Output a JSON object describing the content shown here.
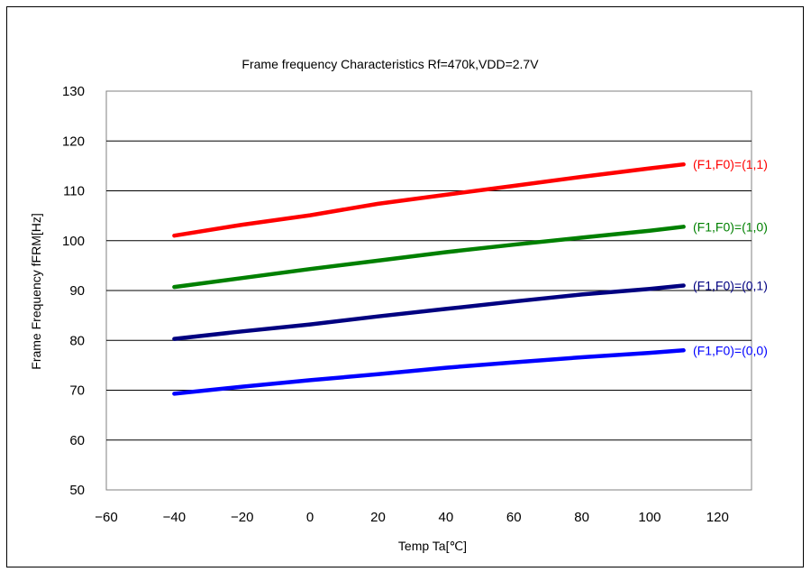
{
  "chart_data": {
    "type": "line",
    "title": "Frame frequency Characteristics  Rf=470k,VDD=2.7V",
    "xlabel": "Temp  Ta[℃]",
    "ylabel": "Frame Frequency fFRM[Hz]",
    "xlim": [
      -60,
      130
    ],
    "ylim": [
      50,
      130
    ],
    "xticks": [
      -60,
      -40,
      -20,
      0,
      20,
      40,
      60,
      80,
      100,
      120
    ],
    "yticks": [
      50,
      60,
      70,
      80,
      90,
      100,
      110,
      120,
      130
    ],
    "xtick_labels": [
      "−60",
      "−40",
      "−20",
      "0",
      "20",
      "40",
      "60",
      "80",
      "100",
      "120"
    ],
    "ytick_labels": [
      "50",
      "60",
      "70",
      "80",
      "90",
      "100",
      "110",
      "120",
      "130"
    ],
    "grid": "horizontal",
    "legend": "inline-right",
    "series": [
      {
        "name": "(F1,F0)=(1,1)",
        "color": "#ff0000",
        "x": [
          -40,
          -20,
          0,
          20,
          40,
          60,
          80,
          100,
          110
        ],
        "y": [
          101,
          103.2,
          105.1,
          107.4,
          109.2,
          111.0,
          112.8,
          114.5,
          115.3
        ]
      },
      {
        "name": "(F1,F0)=(1,0)",
        "color": "#008000",
        "x": [
          -40,
          -20,
          0,
          20,
          40,
          60,
          80,
          100,
          110
        ],
        "y": [
          90.7,
          92.5,
          94.3,
          96.0,
          97.7,
          99.2,
          100.6,
          102.0,
          102.8
        ]
      },
      {
        "name": "(F1,F0)=(0,1)",
        "color": "#000080",
        "x": [
          -40,
          -20,
          0,
          20,
          40,
          60,
          80,
          100,
          110
        ],
        "y": [
          80.3,
          81.8,
          83.2,
          84.8,
          86.3,
          87.8,
          89.2,
          90.3,
          91.0
        ]
      },
      {
        "name": "(F1,F0)=(0,0)",
        "color": "#0000ff",
        "x": [
          -40,
          -20,
          0,
          20,
          40,
          60,
          80,
          100,
          110
        ],
        "y": [
          69.3,
          70.7,
          72.0,
          73.2,
          74.5,
          75.6,
          76.6,
          77.5,
          78.0
        ]
      }
    ]
  }
}
